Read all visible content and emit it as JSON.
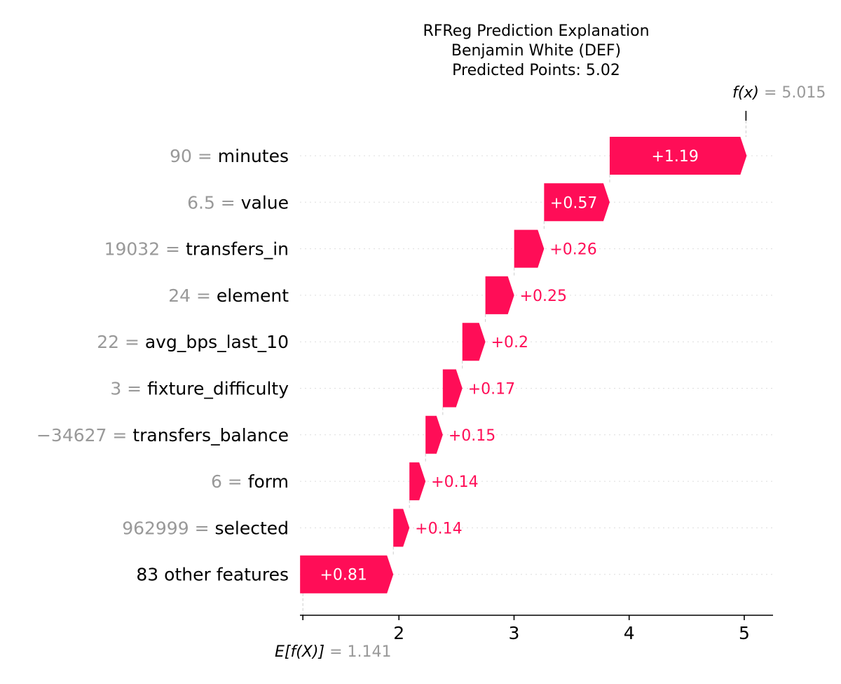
{
  "chart_data": {
    "type": "waterfall",
    "title_lines": [
      "RFReg Prediction Explanation",
      "Benjamin White (DEF)",
      "Predicted Points: 5.02"
    ],
    "fx_label": "f(x)",
    "fx_value": "= 5.015",
    "base_label": "E[f(X)]",
    "base_value": "= 1.141",
    "base": 1.141,
    "final": 5.015,
    "xlim": [
      1.14,
      5.25
    ],
    "xticks": [
      2,
      3,
      4,
      5
    ],
    "xtick_labels": [
      "2",
      "3",
      "4",
      "5"
    ],
    "bars": [
      {
        "feature_value": "90",
        "feature": "minutes",
        "contribution": 1.19,
        "label": "+1.19"
      },
      {
        "feature_value": "6.5",
        "feature": "value",
        "contribution": 0.57,
        "label": "+0.57"
      },
      {
        "feature_value": "19032",
        "feature": "transfers_in",
        "contribution": 0.26,
        "label": "+0.26"
      },
      {
        "feature_value": "24",
        "feature": "element",
        "contribution": 0.25,
        "label": "+0.25"
      },
      {
        "feature_value": "22",
        "feature": "avg_bps_last_10",
        "contribution": 0.2,
        "label": "+0.2"
      },
      {
        "feature_value": "3",
        "feature": "fixture_difficulty",
        "contribution": 0.17,
        "label": "+0.17"
      },
      {
        "feature_value": "−34627",
        "feature": "transfers_balance",
        "contribution": 0.15,
        "label": "+0.15"
      },
      {
        "feature_value": "6",
        "feature": "form",
        "contribution": 0.14,
        "label": "+0.14"
      },
      {
        "feature_value": "962999",
        "feature": "selected",
        "contribution": 0.14,
        "label": "+0.14"
      },
      {
        "feature_value": "",
        "feature": "83 other features",
        "contribution": 0.81,
        "label": "+0.81"
      }
    ],
    "colors": {
      "positive": "#ff0d57",
      "label_gray": "#999999",
      "grid": "#cccccc"
    }
  }
}
